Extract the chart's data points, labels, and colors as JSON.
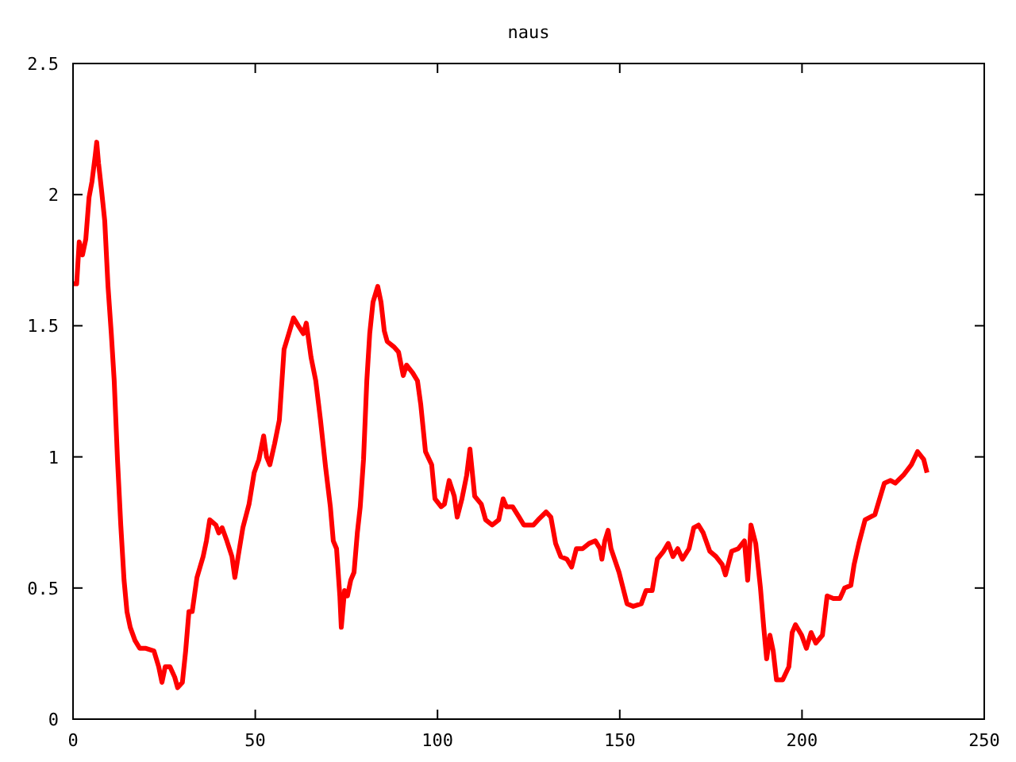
{
  "chart_data": {
    "type": "line",
    "title": "naus",
    "xlim": [
      0,
      250
    ],
    "xticks": [
      0,
      50,
      100,
      150,
      200,
      250
    ],
    "ylim": [
      0,
      2.5
    ],
    "yticks": [
      0,
      0.5,
      1,
      1.5,
      2,
      2.5
    ],
    "grid": false,
    "marker": "none",
    "line_style": "solid",
    "series": [
      {
        "color": "#ff0000",
        "x": [
          0,
          1,
          1.7,
          2.6,
          3.5,
          4.4,
          5.2,
          6.1,
          6.5,
          7,
          7.8,
          8.7,
          9.6,
          10.5,
          11.3,
          12.2,
          13.1,
          14,
          14.8,
          15.7,
          17,
          18.3,
          20,
          22.2,
          23.5,
          24.4,
          25.3,
          26.6,
          27.9,
          28.7,
          30,
          30.9,
          31.8,
          32.7,
          34,
          35.7,
          36.6,
          37.5,
          39.2,
          40,
          40.9,
          42.2,
          43.6,
          44.4,
          45.3,
          46.6,
          48.3,
          49.7,
          51,
          52.3,
          53.1,
          54,
          55.3,
          56.6,
          57.9,
          59.2,
          60.5,
          61.8,
          63.2,
          64,
          65.3,
          66.6,
          67.9,
          69.3,
          70.6,
          71.4,
          72.3,
          73.2,
          73.6,
          74.5,
          75.3,
          76.2,
          77.1,
          78,
          78.8,
          79.7,
          80.6,
          81.4,
          82.3,
          83.6,
          84.5,
          85.4,
          86.2,
          88,
          89.3,
          90.6,
          91.5,
          93.2,
          94.5,
          95.4,
          96.7,
          98.4,
          99.3,
          101,
          101.9,
          103.2,
          104.6,
          105.4,
          106.7,
          108,
          108.9,
          110.2,
          112,
          113.2,
          115,
          116.8,
          118,
          118.9,
          120.6,
          122.4,
          123.7,
          126.3,
          127.6,
          129.8,
          131.1,
          132.4,
          133.8,
          135.5,
          136.8,
          138.1,
          139.8,
          141.6,
          143.3,
          144.6,
          145.1,
          145.9,
          146.8,
          147.6,
          149.8,
          152,
          153.7,
          155.9,
          157.2,
          158.9,
          160.3,
          162,
          163.3,
          164.6,
          165.9,
          167.2,
          169,
          170.3,
          171.6,
          172.9,
          174.7,
          176.4,
          178.1,
          179,
          180.7,
          182.5,
          184.2,
          185.1,
          186,
          187.3,
          188.6,
          189.5,
          190.3,
          191.2,
          192.1,
          193,
          194.7,
          196.4,
          197.3,
          198.2,
          199.9,
          201.2,
          202.5,
          203.8,
          205.6,
          206.9,
          208.6,
          210.4,
          211.7,
          213.4,
          214.3,
          215.6,
          217.3,
          220,
          221.3,
          222.6,
          224.3,
          225.6,
          227.8,
          230,
          231.7,
          233.4,
          234.3
        ],
        "values": [
          1.66,
          1.66,
          1.82,
          1.77,
          1.83,
          1.99,
          2.05,
          2.15,
          2.2,
          2.12,
          2.02,
          1.9,
          1.65,
          1.47,
          1.29,
          0.99,
          0.74,
          0.53,
          0.41,
          0.35,
          0.3,
          0.27,
          0.27,
          0.26,
          0.2,
          0.14,
          0.2,
          0.2,
          0.16,
          0.12,
          0.14,
          0.26,
          0.41,
          0.41,
          0.54,
          0.62,
          0.68,
          0.76,
          0.74,
          0.71,
          0.73,
          0.68,
          0.62,
          0.54,
          0.62,
          0.73,
          0.82,
          0.94,
          0.99,
          1.08,
          1,
          0.97,
          1.05,
          1.14,
          1.41,
          1.47,
          1.53,
          1.5,
          1.47,
          1.51,
          1.38,
          1.29,
          1.14,
          0.96,
          0.81,
          0.68,
          0.65,
          0.47,
          0.35,
          0.49,
          0.47,
          0.53,
          0.56,
          0.71,
          0.81,
          0.99,
          1.29,
          1.47,
          1.59,
          1.65,
          1.59,
          1.48,
          1.44,
          1.42,
          1.4,
          1.31,
          1.35,
          1.32,
          1.29,
          1.2,
          1.02,
          0.97,
          0.84,
          0.81,
          0.82,
          0.91,
          0.85,
          0.77,
          0.84,
          0.93,
          1.03,
          0.85,
          0.82,
          0.76,
          0.74,
          0.76,
          0.84,
          0.81,
          0.81,
          0.77,
          0.74,
          0.74,
          0.76,
          0.79,
          0.77,
          0.67,
          0.62,
          0.61,
          0.58,
          0.65,
          0.65,
          0.67,
          0.68,
          0.65,
          0.61,
          0.68,
          0.72,
          0.65,
          0.56,
          0.44,
          0.43,
          0.44,
          0.49,
          0.49,
          0.61,
          0.64,
          0.67,
          0.62,
          0.65,
          0.61,
          0.65,
          0.73,
          0.74,
          0.71,
          0.64,
          0.62,
          0.59,
          0.55,
          0.64,
          0.65,
          0.68,
          0.53,
          0.74,
          0.67,
          0.5,
          0.35,
          0.23,
          0.32,
          0.26,
          0.15,
          0.15,
          0.2,
          0.33,
          0.36,
          0.32,
          0.27,
          0.33,
          0.29,
          0.32,
          0.47,
          0.46,
          0.46,
          0.5,
          0.51,
          0.59,
          0.67,
          0.76,
          0.78,
          0.84,
          0.9,
          0.91,
          0.9,
          0.93,
          0.97,
          1.02,
          0.99,
          0.94
        ]
      }
    ]
  }
}
